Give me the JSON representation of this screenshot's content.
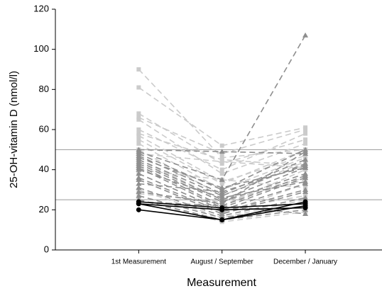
{
  "chart_data": {
    "type": "line",
    "y_label": "25-OH-vitamin D (nmol/l)",
    "x_label": "Measurement",
    "categories": [
      "1st Measurement",
      "August / September",
      "December / January"
    ],
    "ylim": [
      0,
      120
    ],
    "yticks": [
      0,
      20,
      40,
      60,
      80,
      100,
      120
    ],
    "reference_lines": [
      25,
      50
    ],
    "series": [
      {
        "color": "#cbcbcb",
        "marker": "square",
        "dashed": true,
        "values": [
          90,
          46,
          50
        ]
      },
      {
        "color": "#cbcbcb",
        "marker": "square",
        "dashed": true,
        "values": [
          81,
          52,
          61
        ]
      },
      {
        "color": "#cbcbcb",
        "marker": "square",
        "dashed": true,
        "values": [
          68,
          43,
          55
        ]
      },
      {
        "color": "#cbcbcb",
        "marker": "square",
        "dashed": true,
        "values": [
          66,
          48,
          60
        ]
      },
      {
        "color": "#cbcbcb",
        "marker": "square",
        "dashed": true,
        "values": [
          65,
          38,
          53
        ]
      },
      {
        "color": "#cbcbcb",
        "marker": "square",
        "dashed": true,
        "values": [
          60,
          40,
          58
        ]
      },
      {
        "color": "#cbcbcb",
        "marker": "square",
        "dashed": true,
        "values": [
          58,
          45,
          42
        ]
      },
      {
        "color": "#cbcbcb",
        "marker": "square",
        "dashed": true,
        "values": [
          57,
          34,
          47
        ]
      },
      {
        "color": "#cbcbcb",
        "marker": "square",
        "dashed": true,
        "values": [
          55,
          33,
          50
        ]
      },
      {
        "color": "#cbcbcb",
        "marker": "square",
        "dashed": true,
        "values": [
          53,
          30,
          46
        ]
      },
      {
        "color": "#cbcbcb",
        "marker": "square",
        "dashed": true,
        "values": [
          50,
          27,
          44
        ]
      },
      {
        "color": "#cbcbcb",
        "marker": "square",
        "dashed": true,
        "values": [
          48,
          44,
          41
        ]
      },
      {
        "color": "#cbcbcb",
        "marker": "square",
        "dashed": true,
        "values": [
          45,
          25,
          36
        ]
      },
      {
        "color": "#cbcbcb",
        "marker": "square",
        "dashed": true,
        "values": [
          42,
          22,
          40
        ]
      },
      {
        "color": "#cbcbcb",
        "marker": "square",
        "dashed": true,
        "values": [
          40,
          35,
          31
        ]
      },
      {
        "color": "#cbcbcb",
        "marker": "square",
        "dashed": true,
        "values": [
          38,
          20,
          27
        ]
      },
      {
        "color": "#cbcbcb",
        "marker": "square",
        "dashed": true,
        "values": [
          35,
          18,
          33
        ]
      },
      {
        "color": "#cbcbcb",
        "marker": "square",
        "dashed": true,
        "values": [
          30,
          16,
          25
        ]
      },
      {
        "color": "#cbcbcb",
        "marker": "square",
        "dashed": true,
        "values": [
          28,
          24,
          35
        ]
      },
      {
        "color": "#cbcbcb",
        "marker": "square",
        "dashed": true,
        "values": [
          25,
          14,
          19
        ]
      },
      {
        "color": "#8e8e8e",
        "marker": "triangle",
        "dashed": true,
        "values": [
          50,
          49,
          48
        ]
      },
      {
        "color": "#8e8e8e",
        "marker": "triangle",
        "dashed": true,
        "values": [
          49,
          35,
          107
        ]
      },
      {
        "color": "#8e8e8e",
        "marker": "triangle",
        "dashed": true,
        "values": [
          48,
          30,
          50
        ]
      },
      {
        "color": "#8e8e8e",
        "marker": "triangle",
        "dashed": true,
        "values": [
          47,
          28,
          45
        ]
      },
      {
        "color": "#8e8e8e",
        "marker": "triangle",
        "dashed": true,
        "values": [
          46,
          31,
          41
        ]
      },
      {
        "color": "#8e8e8e",
        "marker": "triangle",
        "dashed": true,
        "values": [
          45,
          27,
          43
        ]
      },
      {
        "color": "#8e8e8e",
        "marker": "triangle",
        "dashed": true,
        "values": [
          44,
          25,
          41
        ]
      },
      {
        "color": "#8e8e8e",
        "marker": "triangle",
        "dashed": true,
        "values": [
          43,
          24,
          38
        ]
      },
      {
        "color": "#8e8e8e",
        "marker": "triangle",
        "dashed": true,
        "values": [
          42,
          22,
          37
        ]
      },
      {
        "color": "#8e8e8e",
        "marker": "triangle",
        "dashed": true,
        "values": [
          41,
          21,
          36
        ]
      },
      {
        "color": "#8e8e8e",
        "marker": "triangle",
        "dashed": true,
        "values": [
          40,
          26,
          34
        ]
      },
      {
        "color": "#8e8e8e",
        "marker": "triangle",
        "dashed": true,
        "values": [
          38,
          20,
          33
        ]
      },
      {
        "color": "#8e8e8e",
        "marker": "triangle",
        "dashed": true,
        "values": [
          36,
          19,
          30
        ]
      },
      {
        "color": "#8e8e8e",
        "marker": "triangle",
        "dashed": true,
        "values": [
          35,
          18,
          29
        ]
      },
      {
        "color": "#8e8e8e",
        "marker": "triangle",
        "dashed": true,
        "values": [
          33,
          29,
          42
        ]
      },
      {
        "color": "#8e8e8e",
        "marker": "triangle",
        "dashed": true,
        "values": [
          31,
          17,
          26
        ]
      },
      {
        "color": "#8e8e8e",
        "marker": "triangle",
        "dashed": true,
        "values": [
          29,
          23,
          49
        ]
      },
      {
        "color": "#8e8e8e",
        "marker": "triangle",
        "dashed": true,
        "values": [
          27,
          16,
          22
        ]
      },
      {
        "color": "#8e8e8e",
        "marker": "triangle",
        "dashed": true,
        "values": [
          25,
          15,
          20
        ]
      },
      {
        "color": "#8e8e8e",
        "marker": "triangle",
        "dashed": true,
        "values": [
          24,
          22,
          18
        ]
      },
      {
        "color": "#000000",
        "marker": "circle",
        "dashed": false,
        "values": [
          24,
          21,
          23
        ]
      },
      {
        "color": "#000000",
        "marker": "circle",
        "dashed": false,
        "values": [
          23,
          20,
          21
        ]
      },
      {
        "color": "#000000",
        "marker": "circle",
        "dashed": false,
        "values": [
          23,
          15,
          22
        ]
      },
      {
        "color": "#000000",
        "marker": "circle",
        "dashed": false,
        "values": [
          20,
          15,
          24
        ]
      }
    ]
  }
}
